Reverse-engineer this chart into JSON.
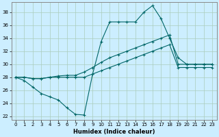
{
  "xlabel": "Humidex (Indice chaleur)",
  "bg_color": "#cceeff",
  "grid_color": "#aaccbb",
  "line_color": "#006666",
  "ylim": [
    21.5,
    39.5
  ],
  "xlim": [
    -0.5,
    23.5
  ],
  "yticks": [
    22,
    24,
    26,
    28,
    30,
    32,
    34,
    36,
    38
  ],
  "xticks": [
    0,
    1,
    2,
    3,
    4,
    5,
    6,
    7,
    8,
    9,
    10,
    11,
    12,
    13,
    14,
    15,
    16,
    17,
    18,
    19,
    20,
    21,
    22,
    23
  ],
  "line1_x": [
    0,
    1,
    2,
    3,
    4,
    5,
    6,
    7,
    8,
    9,
    10,
    11,
    12,
    13,
    14,
    15,
    16,
    17,
    18,
    19,
    20,
    21,
    22,
    23
  ],
  "line1_y": [
    28.0,
    27.5,
    26.5,
    25.5,
    25.0,
    24.5,
    23.3,
    22.3,
    22.2,
    28.5,
    33.5,
    36.5,
    36.5,
    36.5,
    36.5,
    38.0,
    39.0,
    37.0,
    34.0,
    31.0,
    30.0,
    30.0,
    30.0,
    30.0
  ],
  "line2_x": [
    0,
    1,
    2,
    3,
    4,
    5,
    6,
    7,
    8,
    9,
    10,
    11,
    12,
    13,
    14,
    15,
    16,
    17,
    18,
    19,
    20,
    21,
    22,
    23
  ],
  "line2_y": [
    28.0,
    28.0,
    27.8,
    27.8,
    28.0,
    28.2,
    28.3,
    28.3,
    28.8,
    29.5,
    30.3,
    31.0,
    31.5,
    32.0,
    32.5,
    33.0,
    33.5,
    34.0,
    34.5,
    30.0,
    30.0,
    30.0,
    30.0,
    30.0
  ],
  "line3_x": [
    0,
    1,
    2,
    3,
    4,
    5,
    6,
    7,
    8,
    9,
    10,
    11,
    12,
    13,
    14,
    15,
    16,
    17,
    18,
    19,
    20,
    21,
    22,
    23
  ],
  "line3_y": [
    28.0,
    28.0,
    27.8,
    27.8,
    28.0,
    28.0,
    28.0,
    28.0,
    28.0,
    28.5,
    29.0,
    29.5,
    30.0,
    30.5,
    31.0,
    31.5,
    32.0,
    32.5,
    33.0,
    29.5,
    29.5,
    29.5,
    29.5,
    29.5
  ]
}
